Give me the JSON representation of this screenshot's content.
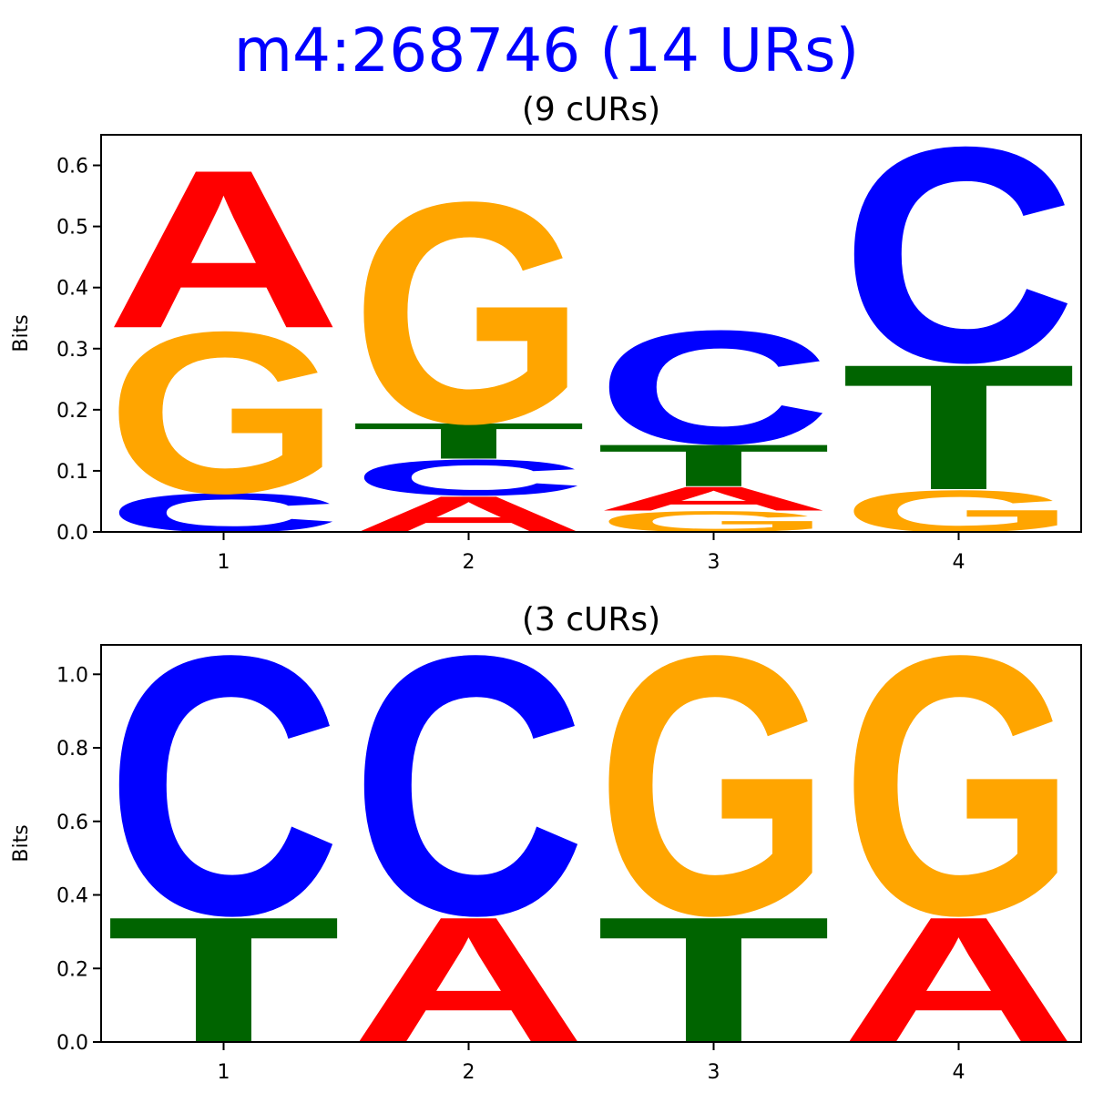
{
  "title": "m4:268746 (14 URs)",
  "colors": {
    "title": "#0000ff",
    "A": "#ff0000",
    "C": "#0000ff",
    "G": "#ffa500",
    "T": "#006400",
    "axis": "#000000"
  },
  "chart_data": [
    {
      "type": "sequence-logo",
      "title": "(9 cURs)",
      "xlabel": "",
      "ylabel": "Bits",
      "ylim": [
        0,
        0.65
      ],
      "yticks": [
        "0.0",
        "0.1",
        "0.2",
        "0.3",
        "0.4",
        "0.5",
        "0.6"
      ],
      "categories": [
        "1",
        "2",
        "3",
        "4"
      ],
      "positions": [
        [
          {
            "letter": "C",
            "bits": 0.065
          },
          {
            "letter": "G",
            "bits": 0.27
          },
          {
            "letter": "A",
            "bits": 0.265
          }
        ],
        [
          {
            "letter": "A",
            "bits": 0.06
          },
          {
            "letter": "C",
            "bits": 0.06
          },
          {
            "letter": "T",
            "bits": 0.06
          },
          {
            "letter": "G",
            "bits": 0.37
          }
        ],
        [
          {
            "letter": "G",
            "bits": 0.035
          },
          {
            "letter": "A",
            "bits": 0.04
          },
          {
            "letter": "T",
            "bits": 0.07
          },
          {
            "letter": "C",
            "bits": 0.19
          }
        ],
        [
          {
            "letter": "G",
            "bits": 0.07
          },
          {
            "letter": "T",
            "bits": 0.21
          },
          {
            "letter": "C",
            "bits": 0.36
          }
        ]
      ]
    },
    {
      "type": "sequence-logo",
      "title": "(3 cURs)",
      "xlabel": "",
      "ylabel": "Bits",
      "ylim": [
        0,
        1.08
      ],
      "yticks": [
        "0.0",
        "0.2",
        "0.4",
        "0.6",
        "0.8",
        "1.0"
      ],
      "categories": [
        "1",
        "2",
        "3",
        "4"
      ],
      "positions": [
        [
          {
            "letter": "T",
            "bits": 0.35
          },
          {
            "letter": "C",
            "bits": 0.72
          }
        ],
        [
          {
            "letter": "A",
            "bits": 0.35
          },
          {
            "letter": "C",
            "bits": 0.72
          }
        ],
        [
          {
            "letter": "T",
            "bits": 0.35
          },
          {
            "letter": "G",
            "bits": 0.72
          }
        ],
        [
          {
            "letter": "A",
            "bits": 0.35
          },
          {
            "letter": "G",
            "bits": 0.72
          }
        ]
      ]
    }
  ]
}
